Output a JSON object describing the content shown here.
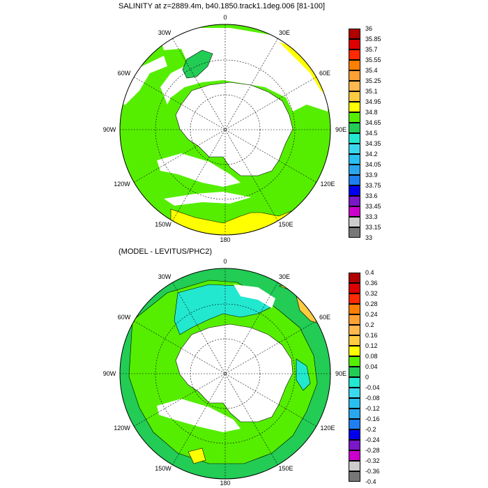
{
  "panels": [
    {
      "title": "SALINITY at z=2889.4m, b40.1850.track1.1deg.006 [81-100]",
      "colorbar": {
        "labels": [
          "36",
          "35.85",
          "35.7",
          "35.55",
          "35.4",
          "35.25",
          "35.1",
          "34.95",
          "34.8",
          "34.65",
          "34.5",
          "34.35",
          "34.2",
          "34.05",
          "33.9",
          "33.75",
          "33.6",
          "33.45",
          "33.3",
          "33.15",
          "33"
        ],
        "colors": [
          "#b00000",
          "#dd0000",
          "#ff2a00",
          "#ff7f00",
          "#ffa033",
          "#ffb84d",
          "#ffcc40",
          "#ffff00",
          "#55ee00",
          "#22cc55",
          "#22e8d0",
          "#3ad8ee",
          "#28c0f0",
          "#2aa6ee",
          "#1f7ff0",
          "#0000ee",
          "#7a17c8",
          "#cc00cc",
          "#cccccc",
          "#777777"
        ]
      },
      "map_colors": {
        "ocean": "#55ee00",
        "land": "#ffffff",
        "shelf_low": "#ffff00",
        "pool": "#22cc55"
      }
    },
    {
      "title": "(MODEL - LEVITUS/PHC2)",
      "colorbar": {
        "labels": [
          "0.4",
          "0.36",
          "0.32",
          "0.28",
          "0.24",
          "0.2",
          "0.16",
          "0.12",
          "0.08",
          "0.04",
          "0",
          "-0.04",
          "-0.08",
          "-0.12",
          "-0.16",
          "-0.2",
          "-0.24",
          "-0.28",
          "-0.32",
          "-0.36",
          "-0.4"
        ],
        "colors": [
          "#b00000",
          "#dd0000",
          "#ff2a00",
          "#ff7f00",
          "#ffa033",
          "#ffb84d",
          "#ffcc40",
          "#ffff00",
          "#55ee00",
          "#22cc55",
          "#22e8d0",
          "#3ad8ee",
          "#28c0f0",
          "#2aa6ee",
          "#1f7ff0",
          "#0000ee",
          "#7a17c8",
          "#cc00cc",
          "#cccccc",
          "#777777"
        ]
      },
      "map_colors": {
        "ocean": "#22cc55",
        "land": "#ffffff",
        "positive": "#ffff00",
        "negative": "#22e8d0",
        "strong_positive": "#ffcc40"
      }
    }
  ],
  "longitude_labels": [
    "0",
    "30E",
    "60E",
    "90E",
    "120E",
    "150E",
    "180",
    "150W",
    "120W",
    "90W",
    "60W",
    "30W"
  ]
}
